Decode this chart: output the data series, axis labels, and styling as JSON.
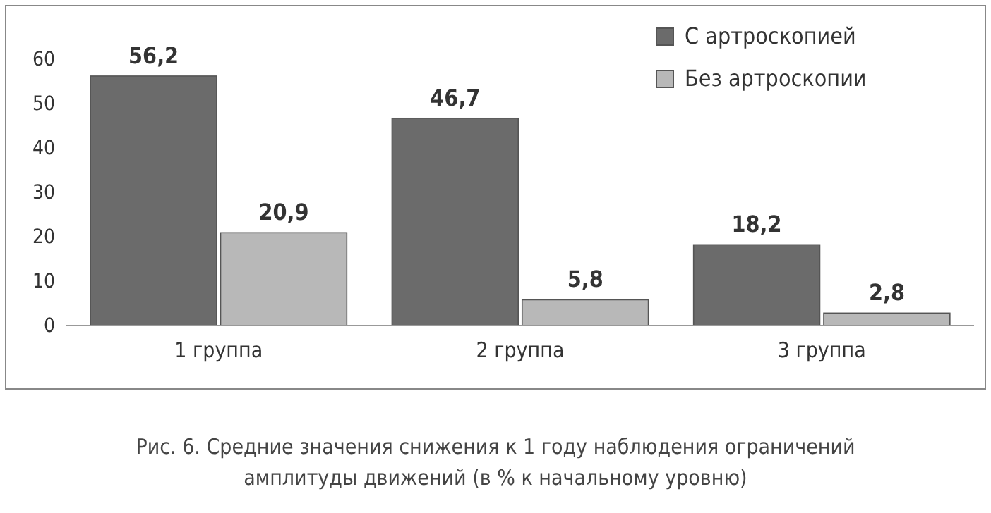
{
  "chart_data": {
    "type": "bar",
    "title": "Рис. 6. Средние значения снижения к 1 году наблюдения ограничений амплитуды движений (в % к начальному уровню)",
    "categories": [
      "1 группа",
      "2 группа",
      "3 группа"
    ],
    "series": [
      {
        "name": "С артроскопией",
        "color": "#6b6b6b",
        "values": [
          56.2,
          46.7,
          18.2
        ],
        "value_labels": [
          "56,2",
          "46,7",
          "18,2"
        ]
      },
      {
        "name": "Без артроскопии",
        "color": "#b8b8b8",
        "values": [
          20.9,
          5.8,
          2.8
        ],
        "value_labels": [
          "20,9",
          "5,8",
          "2,8"
        ]
      }
    ],
    "ylim": [
      0,
      60
    ],
    "yticks": [
      0,
      10,
      20,
      30,
      40,
      50,
      60
    ],
    "grid": false,
    "legend": "top right"
  }
}
